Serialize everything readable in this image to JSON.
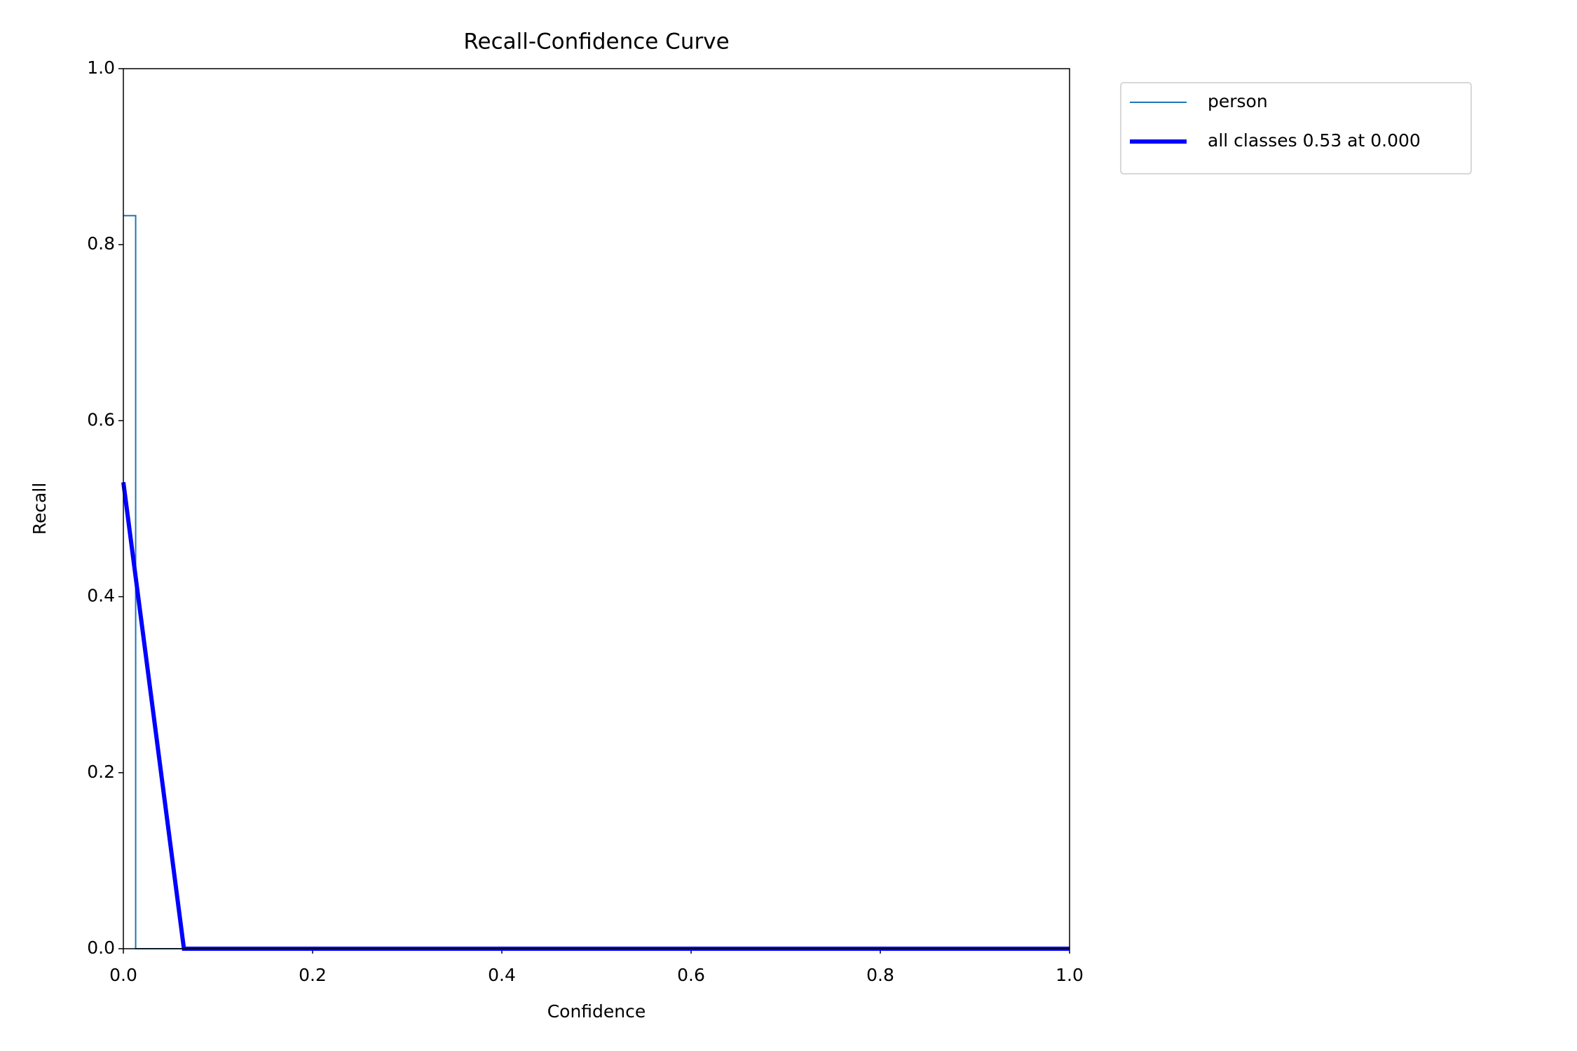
{
  "chart_data": {
    "type": "line",
    "title": "Recall-Confidence Curve",
    "x_label": "Confidence",
    "y_label": "Recall",
    "series": [
      {
        "name": "person",
        "color": "#1f77b4",
        "x": [
          0,
          0.013,
          0.013,
          1.0
        ],
        "values": [
          0.833,
          0.833,
          0,
          0
        ]
      },
      {
        "name": "all classes 0.53 at 0.000",
        "color": "#0000ff",
        "x": [
          0,
          0.064,
          1.0
        ],
        "values": [
          0.53,
          0,
          0
        ]
      }
    ],
    "xlim": [
      0,
      1
    ],
    "ylim": [
      0,
      1
    ],
    "xticks": [
      {
        "value": 0,
        "label": "0.0"
      },
      0.2,
      0.4,
      0.6,
      0.8,
      {
        "value": 1,
        "label": "1.0"
      }
    ],
    "yticks": [
      {
        "value": 0,
        "label": "0.0"
      },
      0.2,
      0.4,
      0.6,
      0.8,
      {
        "value": 1,
        "label": "1.0"
      }
    ],
    "grid": false,
    "legend": "outside upper right"
  }
}
